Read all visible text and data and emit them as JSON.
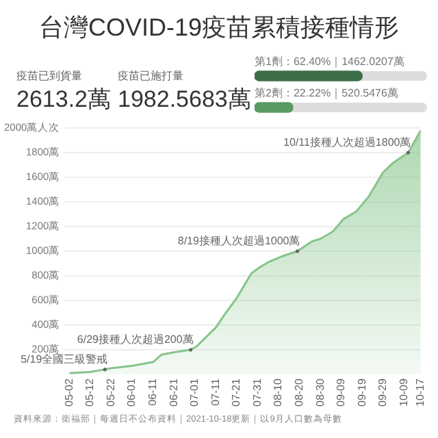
{
  "chart_data": [
    {
      "type": "other",
      "title": "台灣COVID-19疫苗累積接種情形",
      "annotations": [
        "疫苗已到貨量",
        "2613.2萬",
        "疫苗已施打量",
        "1982.5683萬"
      ]
    },
    {
      "type": "bar",
      "orientation": "horizontal",
      "categories": [
        null,
        null
      ],
      "values": [
        62.4,
        22.22
      ],
      "colors": [
        "#3e6e48",
        "#5a9a61"
      ],
      "value_labels": [
        "第1劑：62.40%｜1462.0207萬",
        "第2劑：22.22%｜520.5476萬"
      ],
      "xlim": [
        0,
        100
      ],
      "tick_labels": false
    },
    {
      "type": "area",
      "x": [
        "--05-02",
        "--05-12",
        "--05-19",
        "--05-22",
        "--06-01",
        "--06-11",
        "--06-15",
        "--06-21",
        "--06-29",
        "--07-02",
        "--07-08",
        "--07-11",
        "--07-15",
        "--07-21",
        "--07-28",
        "--08-01",
        "--08-05",
        "--08-12",
        "--08-19",
        "--08-26",
        "--08-30",
        "--09-05",
        "--09-10",
        "--09-16",
        "--09-22",
        "--09-29",
        "--10-04",
        "--10-11",
        "--10-17"
      ],
      "series": [
        {
          "color": "#86c48a",
          "values": [
            10,
            20,
            40,
            50,
            70,
            100,
            160,
            180,
            200,
            230,
            330,
            380,
            480,
            620,
            820,
            870,
            910,
            960,
            1000,
            1080,
            1100,
            1160,
            1260,
            1320,
            1440,
            1640,
            1720,
            1800,
            1980
          ]
        }
      ],
      "xlim": [
        "--05-02",
        "--10-17"
      ],
      "xticks": [
        {
          "value": "--05-02",
          "label": "05-02"
        },
        {
          "value": "--05-12",
          "label": "05-12"
        },
        {
          "value": "--05-22",
          "label": "05-22"
        },
        {
          "value": "--06-01",
          "label": "06-01"
        },
        {
          "value": "--06-11",
          "label": "06-11"
        },
        {
          "value": "--06-21",
          "label": "06-21"
        },
        {
          "value": "--07-01",
          "label": "07-01"
        },
        {
          "value": "--07-11",
          "label": "07-11"
        },
        {
          "value": "--07-21",
          "label": "07-21"
        },
        {
          "value": "--07-31",
          "label": "07-31"
        },
        {
          "value": "--08-10",
          "label": "08-10"
        },
        {
          "value": "--08-20",
          "label": "08-20"
        },
        {
          "value": "--08-30",
          "label": "08-30"
        },
        {
          "value": "--09-09",
          "label": "09-09"
        },
        {
          "value": "--09-19",
          "label": "09-19"
        },
        {
          "value": "--09-29",
          "label": "09-29"
        },
        {
          "value": "--10-09",
          "label": "10-09"
        },
        {
          "value": "--10-17",
          "label": "10-17"
        }
      ],
      "ylim": [
        0,
        2000
      ],
      "yticks": [
        {
          "value": 200,
          "label": "200萬"
        },
        {
          "value": 400,
          "label": "400萬"
        },
        {
          "value": 600,
          "label": "600萬"
        },
        {
          "value": 800,
          "label": "800萬"
        },
        {
          "value": 1000,
          "label": "1000萬"
        },
        {
          "value": 1200,
          "label": "1200萬"
        },
        {
          "value": 1400,
          "label": "1400萬"
        },
        {
          "value": 1600,
          "label": "1600萬"
        },
        {
          "value": 1800,
          "label": "1800萬"
        },
        {
          "value": 2000,
          "label": "2000萬人次"
        }
      ],
      "grid": "y",
      "annotations": [
        {
          "text": "5/19全國三級警戒",
          "x": "--05-19",
          "y": 40
        },
        {
          "text": "6/29接種人次超過200萬",
          "x": "--06-29",
          "y": 200
        },
        {
          "text": "8/19接種人次超過1000萬",
          "x": "--08-19",
          "y": 1000
        },
        {
          "text": "10/11接種人次超過1800萬",
          "x": "--10-11",
          "y": 1800
        },
        "資料來源：衛福部｜每週日不公布資料｜2021-10-18更新｜以9月人口數為母數"
      ]
    }
  ]
}
